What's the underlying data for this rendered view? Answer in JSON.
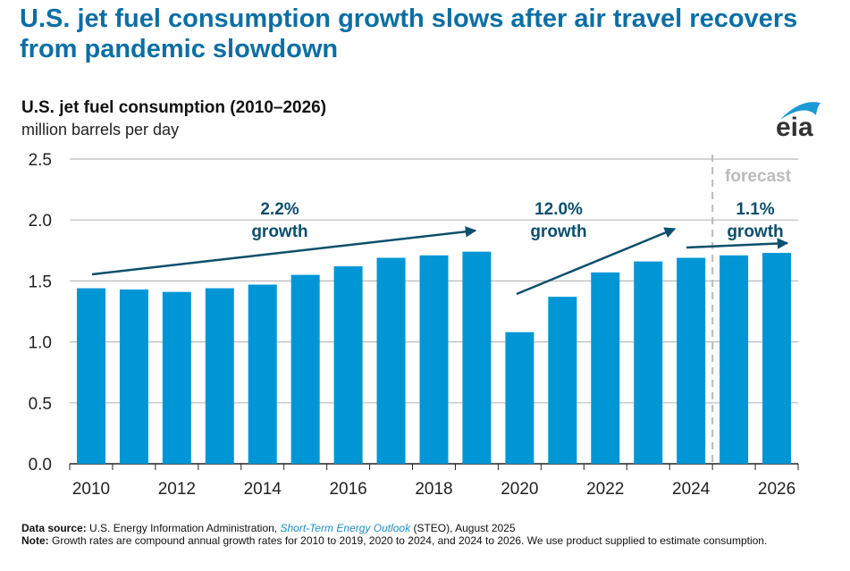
{
  "headline": "U.S. jet fuel consumption growth slows after air travel recovers from pandemic slowdown",
  "logo_text": "eia",
  "footer": {
    "source_label": "Data source:",
    "source_text": "U.S. Energy Information Administration,",
    "source_link": "Short-Term Energy Outlook",
    "source_tail": "(STEO), August 2025",
    "note_label": "Note:",
    "note_text": "Growth rates are compound annual growth rates for 2010 to 2019, 2020 to 2024, and 2024 to 2026. We use product supplied to estimate consumption."
  },
  "chart_data": {
    "type": "bar",
    "title": "U.S. jet fuel consumption (2010–2026)",
    "ylabel": "million barrels per day",
    "categories": [
      "2010",
      "2011",
      "2012",
      "2013",
      "2014",
      "2015",
      "2016",
      "2017",
      "2018",
      "2019",
      "2020",
      "2021",
      "2022",
      "2023",
      "2024",
      "2025",
      "2026"
    ],
    "values": [
      1.44,
      1.43,
      1.41,
      1.44,
      1.47,
      1.55,
      1.62,
      1.69,
      1.71,
      1.74,
      1.08,
      1.37,
      1.57,
      1.66,
      1.69,
      1.71,
      1.73
    ],
    "xticks": [
      "2010",
      "2012",
      "2014",
      "2016",
      "2018",
      "2020",
      "2022",
      "2024",
      "2026"
    ],
    "yticks": [
      "0.0",
      "0.5",
      "1.0",
      "1.5",
      "2.0",
      "2.5"
    ],
    "ylim": [
      0,
      2.5
    ],
    "grid": true,
    "forecast_start": "2025",
    "forecast_label": "forecast",
    "bar_color": "#0096d6",
    "annotations": [
      {
        "pct": "2.2%",
        "word": "growth",
        "from": "2010",
        "to": "2019"
      },
      {
        "pct": "12.0%",
        "word": "growth",
        "from": "2020",
        "to": "2024"
      },
      {
        "pct": "1.1%",
        "word": "growth",
        "from": "2024",
        "to": "2026"
      }
    ]
  }
}
